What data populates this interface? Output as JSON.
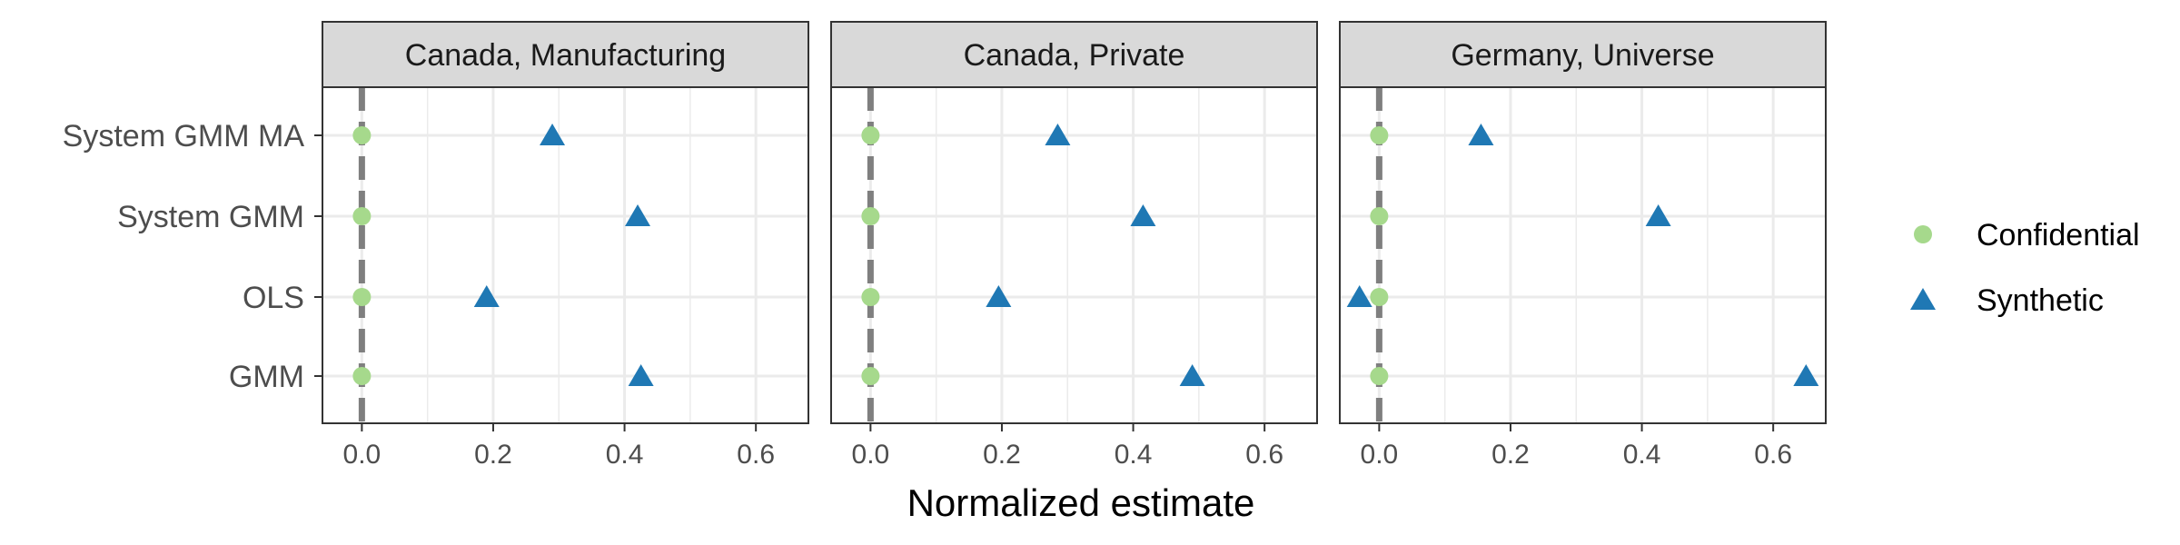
{
  "chart_data": {
    "type": "scatter",
    "facets": [
      {
        "title": "Canada, Manufacturing",
        "series": [
          {
            "name": "Confidential",
            "values": [
              0.0,
              0.0,
              0.0,
              0.0
            ]
          },
          {
            "name": "Synthetic",
            "values": [
              0.29,
              0.42,
              0.19,
              0.425
            ]
          }
        ]
      },
      {
        "title": "Canada, Private",
        "series": [
          {
            "name": "Confidential",
            "values": [
              0.0,
              0.0,
              0.0,
              0.0
            ]
          },
          {
            "name": "Synthetic",
            "values": [
              0.285,
              0.415,
              0.195,
              0.49
            ]
          }
        ]
      },
      {
        "title": "Germany, Universe",
        "series": [
          {
            "name": "Confidential",
            "values": [
              0.0,
              0.0,
              0.0,
              0.0
            ]
          },
          {
            "name": "Synthetic",
            "values": [
              0.155,
              0.425,
              -0.03,
              0.65
            ]
          }
        ]
      }
    ],
    "categories": [
      "System GMM MA",
      "System GMM",
      "OLS",
      "GMM"
    ],
    "xlabel": "Normalized estimate",
    "xticks": [
      "0.0",
      "0.2",
      "0.4",
      "0.6"
    ],
    "xtick_values": [
      0.0,
      0.2,
      0.4,
      0.6
    ],
    "xlim": [
      -0.06,
      0.68
    ],
    "reference_line": 0,
    "legend": {
      "position": "right",
      "entries": [
        {
          "name": "Confidential",
          "shape": "circle",
          "color": "#a6d98c"
        },
        {
          "name": "Synthetic",
          "shape": "triangle",
          "color": "#1f78b4"
        }
      ]
    },
    "grid": true,
    "colors": {
      "confidential": "#a6d98c",
      "synthetic": "#1f78b4",
      "reference_line": "#7f7f7f",
      "strip_fill": "#d9d9d9",
      "grid": "#ebebeb"
    }
  }
}
